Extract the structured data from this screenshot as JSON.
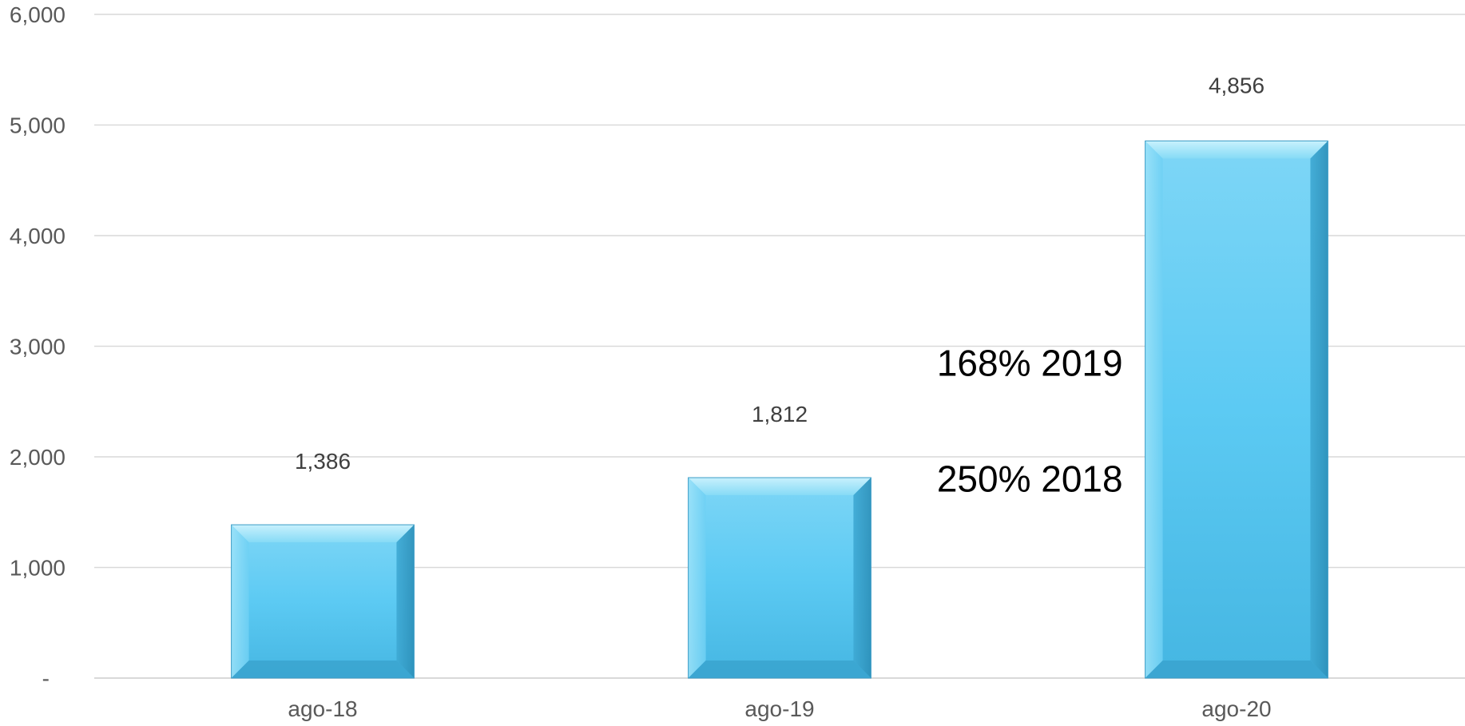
{
  "chart_data": {
    "type": "bar",
    "title": "",
    "xlabel": "",
    "ylabel": "",
    "categories": [
      "ago-18",
      "ago-19",
      "ago-20"
    ],
    "values": [
      1386,
      1812,
      4856
    ],
    "data_labels": [
      "1,386",
      "1,812",
      "4,856"
    ],
    "ylim": [
      0,
      6000
    ],
    "y_ticks": [
      0,
      1000,
      2000,
      3000,
      4000,
      5000,
      6000
    ],
    "y_tick_labels": [
      "-",
      "1,000",
      "2,000",
      "3,000",
      "4,000",
      "5,000",
      "6,000"
    ],
    "grid": true,
    "legend": "none",
    "bar_color": "#5bc8f0",
    "annotations": [
      {
        "text": "168% 2019",
        "anchor_category": "ago-20",
        "y": 2850
      },
      {
        "text": "250% 2018",
        "anchor_category": "ago-20",
        "y": 1800
      }
    ]
  }
}
